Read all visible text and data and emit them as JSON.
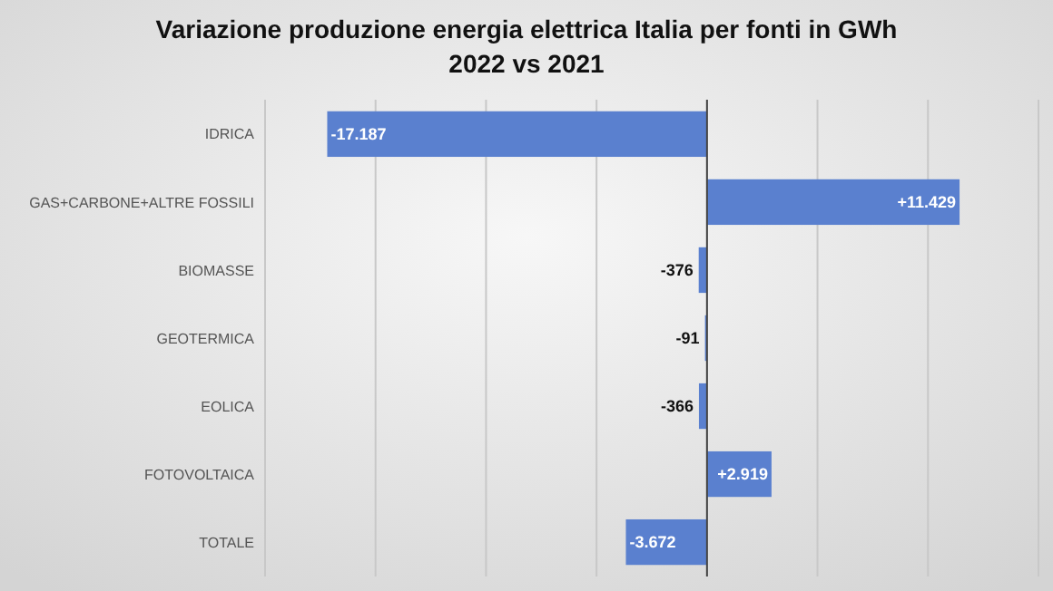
{
  "chart_data": {
    "type": "bar",
    "orientation": "horizontal",
    "title": "Variazione produzione energia elettrica Italia per fonti in GWh",
    "subtitle": "2022 vs 2021",
    "categories": [
      "IDRICA",
      "GAS+CARBONE+ALTRE FOSSILI",
      "BIOMASSE",
      "GEOTERMICA",
      "EOLICA",
      "FOTOVOLTAICA",
      "TOTALE"
    ],
    "values": [
      -17187,
      11429,
      -376,
      -91,
      -366,
      2919,
      -3672
    ],
    "value_labels": [
      "-17.187",
      "+11.429",
      "-376",
      "-91",
      "-366",
      "+2.919",
      "-3.672"
    ],
    "color": "#5a80cf",
    "xlim": [
      -20000,
      15000
    ],
    "xticks": [
      {
        "value": -20000,
        "label": null
      },
      {
        "value": -15000,
        "label": null
      },
      {
        "value": -10000,
        "label": null
      },
      {
        "value": -5000,
        "label": null
      },
      {
        "value": 0,
        "label": null
      },
      {
        "value": 5000,
        "label": null
      },
      {
        "value": 10000,
        "label": null
      },
      {
        "value": 15000,
        "label": null
      }
    ],
    "grid": "x",
    "tick_labels": "y"
  }
}
